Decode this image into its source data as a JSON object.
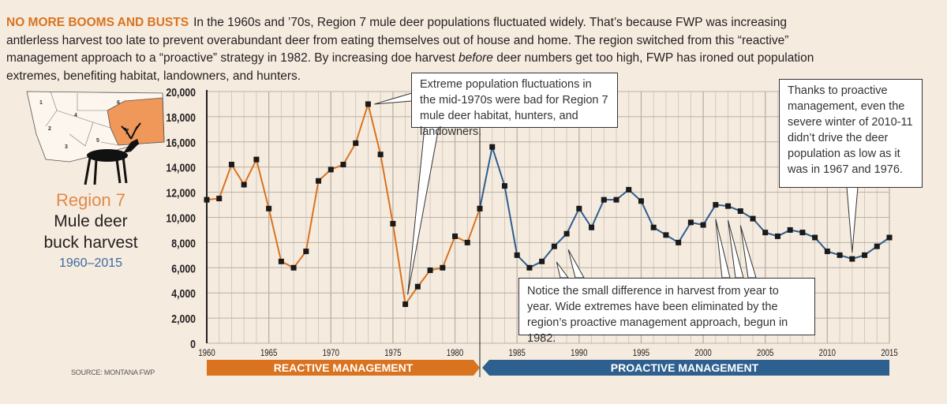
{
  "intro": {
    "lead": "NO MORE BOOMS AND BUSTS",
    "text_before": "In the 1960s and ’70s, Region 7 mule deer populations fluctuated widely. That’s because FWP was increasing antlerless harvest too late to prevent overabundant deer from eating themselves out of house and home. The region switched from this “reactive” management approach to a “proactive” strategy in 1982. By increasing doe harvest ",
    "emphasis": "before",
    "text_after": " deer numbers get too high, FWP has ironed out population extremes, benefiting habitat, landowners, and hunters."
  },
  "side": {
    "region": "Region 7",
    "title_line1": "Mule deer",
    "title_line2": "buck harvest",
    "years": "1960–2015",
    "map_regions": [
      "1",
      "2",
      "3",
      "4",
      "5",
      "6",
      "7"
    ]
  },
  "source": "SOURCE: MONTANA FWP",
  "colors": {
    "reactive": "#d9731f",
    "proactive": "#2d5f8f",
    "background": "#f6ebdf",
    "highlight_region": "#f0975a"
  },
  "callouts": {
    "c1": "Extreme population fluctuations in the mid-1970s were bad for Region 7 mule deer habitat, hunters, and landowners.",
    "c2": "Notice the small difference in harvest from year to year. Wide extremes have been eliminated by the region’s proactive management approach, begun in 1982.",
    "c3": "Thanks to proactive management, even the severe winter of 2010-11 didn’t drive the deer population as low as it was in 1967 and 1976."
  },
  "chart_data": {
    "type": "line",
    "xlim": [
      1960,
      2015
    ],
    "ylim": [
      0,
      20000
    ],
    "grid": true,
    "y_ticks": [
      "0",
      "2,000",
      "4,000",
      "6,000",
      "8,000",
      "10,000",
      "12,000",
      "14,000",
      "16,000",
      "18,000",
      "20,000"
    ],
    "x_ticks": [
      "1960",
      "1965",
      "1970",
      "1975",
      "1980",
      "1985",
      "1990",
      "1995",
      "2000",
      "2005",
      "2010",
      "2015"
    ],
    "bands": [
      {
        "label": "REACTIVE MANAGEMENT",
        "from": 1960,
        "to": 1982
      },
      {
        "label": "PROACTIVE MANAGEMENT",
        "from": 1982,
        "to": 2015
      }
    ],
    "series": [
      {
        "x": [
          1960,
          1961,
          1962,
          1963,
          1964,
          1965,
          1966,
          1967,
          1968,
          1969,
          1970,
          1971,
          1972,
          1973,
          1974,
          1975,
          1976,
          1977,
          1978,
          1979,
          1980,
          1981,
          1982
        ],
        "y": [
          11400,
          11500,
          14200,
          12600,
          14600,
          10700,
          6500,
          6000,
          7300,
          12900,
          13800,
          14200,
          15900,
          19000,
          15000,
          9500,
          3100,
          4500,
          5800,
          6000,
          8500,
          8000,
          10700
        ]
      },
      {
        "x": [
          1982,
          1983,
          1984,
          1985,
          1986,
          1987,
          1988,
          1989,
          1990,
          1991,
          1992,
          1993,
          1994,
          1995,
          1996,
          1997,
          1998,
          1999,
          2000,
          2001,
          2002,
          2003,
          2004,
          2005,
          2006,
          2007,
          2008,
          2009,
          2010,
          2011,
          2012,
          2013,
          2014,
          2015
        ],
        "y": [
          10700,
          15600,
          12500,
          7000,
          6000,
          6500,
          7700,
          8700,
          10700,
          9200,
          11400,
          11400,
          12200,
          11300,
          9200,
          8600,
          8000,
          9600,
          9400,
          11000,
          10900,
          10500,
          9900,
          8800,
          8500,
          9000,
          8800,
          8400,
          7300,
          7000,
          6700,
          7000,
          7700,
          8400
        ]
      }
    ]
  }
}
